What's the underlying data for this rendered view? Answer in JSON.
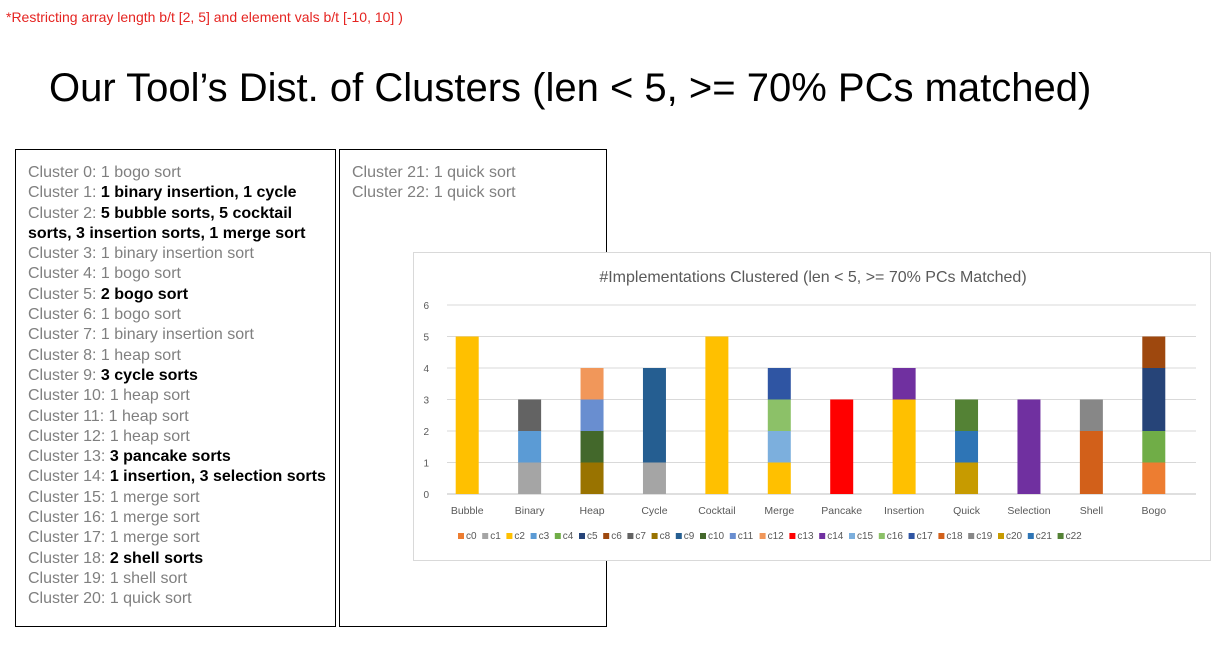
{
  "note": "*Restricting  array length b/t [2, 5] and element vals b/t [-10, 10] )",
  "title": "Our Tool’s Dist. of Clusters (len < 5, >= 70% PCs matched)",
  "cluster_list_left": [
    {
      "prefix": "Cluster 0: ",
      "text": "1 bogo sort",
      "bold": false
    },
    {
      "prefix": "Cluster 1: ",
      "text": "1 binary insertion, 1 cycle",
      "bold": true
    },
    {
      "prefix": "Cluster 2: ",
      "text": "5 bubble sorts, 5 cocktail sorts, 3 insertion sorts, 1 merge sort",
      "bold": true
    },
    {
      "prefix": "Cluster 3: ",
      "text": "1 binary insertion sort",
      "bold": false
    },
    {
      "prefix": "Cluster 4: ",
      "text": "1 bogo sort",
      "bold": false
    },
    {
      "prefix": "Cluster 5: ",
      "text": "2 bogo sort",
      "bold": true
    },
    {
      "prefix": "Cluster 6: ",
      "text": "1 bogo sort",
      "bold": false
    },
    {
      "prefix": "Cluster 7: ",
      "text": "1 binary insertion sort",
      "bold": false
    },
    {
      "prefix": "Cluster 8: ",
      "text": "1 heap sort",
      "bold": false
    },
    {
      "prefix": "Cluster 9: ",
      "text": "3 cycle sorts",
      "bold": true
    },
    {
      "prefix": "Cluster 10: ",
      "text": "1 heap sort",
      "bold": false
    },
    {
      "prefix": "Cluster 11: ",
      "text": "1 heap sort",
      "bold": false
    },
    {
      "prefix": "Cluster 12: ",
      "text": "1 heap sort",
      "bold": false
    },
    {
      "prefix": "Cluster 13: ",
      "text": "3 pancake sorts",
      "bold": true
    },
    {
      "prefix": "Cluster 14: ",
      "text": "1 insertion, 3 selection sorts",
      "bold": true
    },
    {
      "prefix": "Cluster 15: ",
      "text": "1 merge sort",
      "bold": false
    },
    {
      "prefix": "Cluster 16: ",
      "text": "1 merge sort",
      "bold": false
    },
    {
      "prefix": "Cluster 17: ",
      "text": "1 merge sort",
      "bold": false
    },
    {
      "prefix": "Cluster 18: ",
      "text": "2 shell sorts",
      "bold": true
    },
    {
      "prefix": "Cluster 19: ",
      "text": "1 shell sort",
      "bold": false
    },
    {
      "prefix": "Cluster 20: ",
      "text": "1 quick sort",
      "bold": false
    }
  ],
  "cluster_list_right": [
    {
      "prefix": "Cluster 21: ",
      "text": "1 quick sort",
      "bold": false
    },
    {
      "prefix": "Cluster 22: ",
      "text": "1 quick sort",
      "bold": false
    }
  ],
  "chart_data": {
    "type": "bar",
    "stacked": true,
    "title": "#Implementations Clustered (len < 5, >= 70% PCs Matched)",
    "categories": [
      "Bubble",
      "Binary",
      "Heap",
      "Cycle",
      "Cocktail",
      "Merge",
      "Pancake",
      "Insertion",
      "Quick",
      "Selection",
      "Shell",
      "Bogo"
    ],
    "ylim": [
      0,
      6
    ],
    "yticks": [
      0,
      1,
      2,
      3,
      4,
      5,
      6
    ],
    "grid": true,
    "legend_position": "bottom",
    "series": [
      {
        "name": "c0",
        "color": "#ed7d31",
        "values": [
          0,
          0,
          0,
          0,
          0,
          0,
          0,
          0,
          0,
          0,
          0,
          1
        ]
      },
      {
        "name": "c1",
        "color": "#a5a5a5",
        "values": [
          0,
          1,
          0,
          1,
          0,
          0,
          0,
          0,
          0,
          0,
          0,
          0
        ]
      },
      {
        "name": "c2",
        "color": "#ffc000",
        "values": [
          5,
          0,
          0,
          0,
          5,
          1,
          0,
          3,
          0,
          0,
          0,
          0
        ]
      },
      {
        "name": "c3",
        "color": "#5b9bd5",
        "values": [
          0,
          1,
          0,
          0,
          0,
          0,
          0,
          0,
          0,
          0,
          0,
          0
        ]
      },
      {
        "name": "c4",
        "color": "#70ad47",
        "values": [
          0,
          0,
          0,
          0,
          0,
          0,
          0,
          0,
          0,
          0,
          0,
          1
        ]
      },
      {
        "name": "c5",
        "color": "#264478",
        "values": [
          0,
          0,
          0,
          0,
          0,
          0,
          0,
          0,
          0,
          0,
          0,
          2
        ]
      },
      {
        "name": "c6",
        "color": "#9e480e",
        "values": [
          0,
          0,
          0,
          0,
          0,
          0,
          0,
          0,
          0,
          0,
          0,
          1
        ]
      },
      {
        "name": "c7",
        "color": "#636363",
        "values": [
          0,
          1,
          0,
          0,
          0,
          0,
          0,
          0,
          0,
          0,
          0,
          0
        ]
      },
      {
        "name": "c8",
        "color": "#997300",
        "values": [
          0,
          0,
          1,
          0,
          0,
          0,
          0,
          0,
          0,
          0,
          0,
          0
        ]
      },
      {
        "name": "c9",
        "color": "#255e91",
        "values": [
          0,
          0,
          0,
          3,
          0,
          0,
          0,
          0,
          0,
          0,
          0,
          0
        ]
      },
      {
        "name": "c10",
        "color": "#43682b",
        "values": [
          0,
          0,
          1,
          0,
          0,
          0,
          0,
          0,
          0,
          0,
          0,
          0
        ]
      },
      {
        "name": "c11",
        "color": "#698ed0",
        "values": [
          0,
          0,
          1,
          0,
          0,
          0,
          0,
          0,
          0,
          0,
          0,
          0
        ]
      },
      {
        "name": "c12",
        "color": "#f1975a",
        "values": [
          0,
          0,
          1,
          0,
          0,
          0,
          0,
          0,
          0,
          0,
          0,
          0
        ]
      },
      {
        "name": "c13",
        "color": "#ff0000",
        "values": [
          0,
          0,
          0,
          0,
          0,
          0,
          3,
          0,
          0,
          0,
          0,
          0
        ]
      },
      {
        "name": "c14",
        "color": "#7030a0",
        "values": [
          0,
          0,
          0,
          0,
          0,
          0,
          0,
          1,
          0,
          3,
          0,
          0
        ]
      },
      {
        "name": "c15",
        "color": "#7cafdd",
        "values": [
          0,
          0,
          0,
          0,
          0,
          1,
          0,
          0,
          0,
          0,
          0,
          0
        ]
      },
      {
        "name": "c16",
        "color": "#8cc168",
        "values": [
          0,
          0,
          0,
          0,
          0,
          1,
          0,
          0,
          0,
          0,
          0,
          0
        ]
      },
      {
        "name": "c17",
        "color": "#2f55a3",
        "values": [
          0,
          0,
          0,
          0,
          0,
          1,
          0,
          0,
          0,
          0,
          0,
          0
        ]
      },
      {
        "name": "c18",
        "color": "#d2601a",
        "values": [
          0,
          0,
          0,
          0,
          0,
          0,
          0,
          0,
          0,
          0,
          2,
          0
        ]
      },
      {
        "name": "c19",
        "color": "#878787",
        "values": [
          0,
          0,
          0,
          0,
          0,
          0,
          0,
          0,
          0,
          0,
          1,
          0
        ]
      },
      {
        "name": "c20",
        "color": "#c79b00",
        "values": [
          0,
          0,
          0,
          0,
          0,
          0,
          0,
          0,
          1,
          0,
          0,
          0
        ]
      },
      {
        "name": "c21",
        "color": "#2e75b6",
        "values": [
          0,
          0,
          0,
          0,
          0,
          0,
          0,
          0,
          1,
          0,
          0,
          0
        ]
      },
      {
        "name": "c22",
        "color": "#548235",
        "values": [
          0,
          0,
          0,
          0,
          0,
          0,
          0,
          0,
          1,
          0,
          0,
          0
        ]
      }
    ]
  }
}
